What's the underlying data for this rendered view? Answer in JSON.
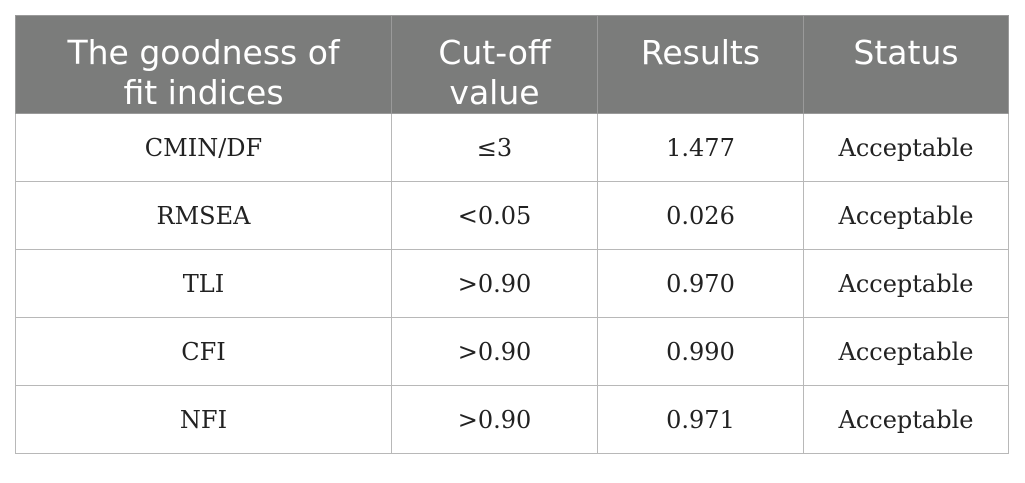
{
  "table": {
    "headers": [
      "The goodness of fit indices",
      "Cut-off value",
      "Results",
      "Status"
    ],
    "rows": [
      {
        "index": "CMIN/DF",
        "cutoff": "≤3",
        "result": "1.477",
        "status": "Acceptable"
      },
      {
        "index": "RMSEA",
        "cutoff": "<0.05",
        "result": "0.026",
        "status": "Acceptable"
      },
      {
        "index": "TLI",
        "cutoff": ">0.90",
        "result": "0.970",
        "status": "Acceptable"
      },
      {
        "index": "CFI",
        "cutoff": ">0.90",
        "result": "0.990",
        "status": "Acceptable"
      },
      {
        "index": "NFI",
        "cutoff": ">0.90",
        "result": "0.971",
        "status": "Acceptable"
      }
    ]
  },
  "colors": {
    "header_background": "#7b7c7b",
    "header_text": "#ffffff",
    "cell_border": "#b8b8b8"
  }
}
